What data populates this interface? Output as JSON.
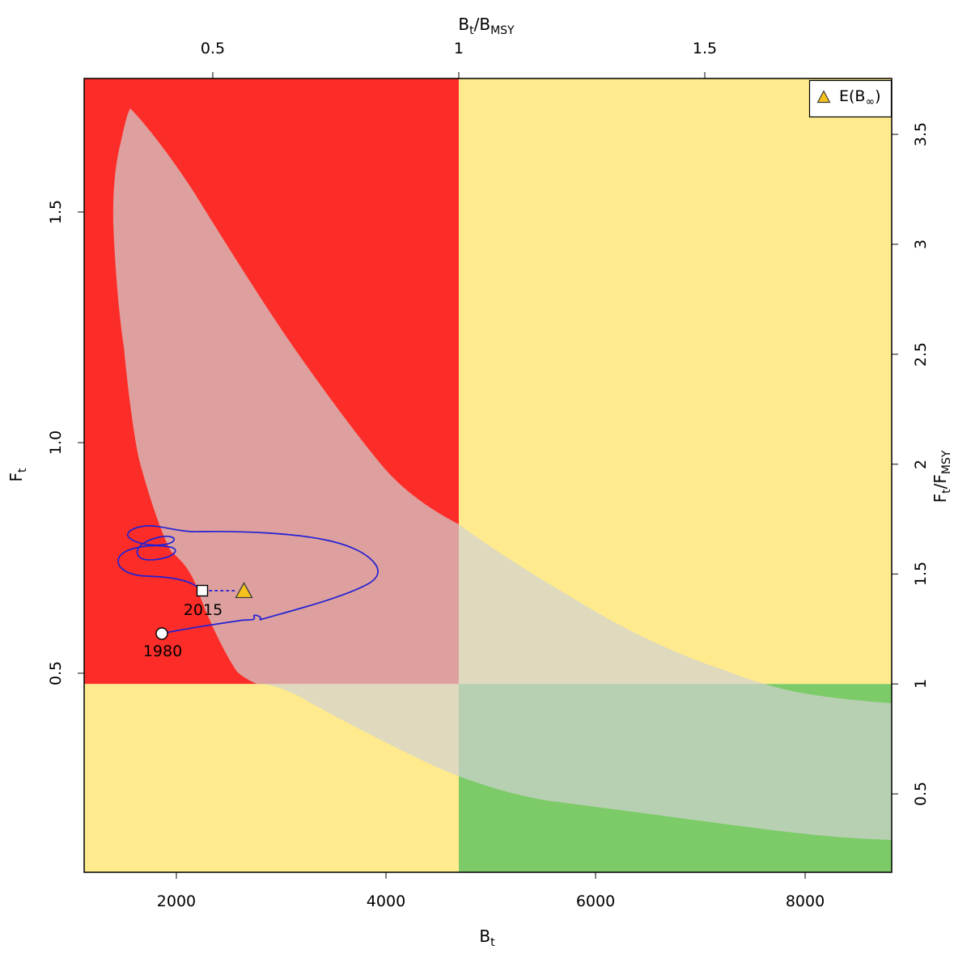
{
  "chart_data": {
    "type": "line",
    "subtype": "kobe-phase-plot",
    "title": "",
    "axes": {
      "bottom": {
        "title": {
          "p1": "B",
          "s1": "t"
        },
        "range": [
          1120,
          8826
        ],
        "ticks": [
          {
            "v": 2000,
            "label": "2000"
          },
          {
            "v": 4000,
            "label": "4000"
          },
          {
            "v": 6000,
            "label": "6000"
          },
          {
            "v": 8000,
            "label": "8000"
          }
        ]
      },
      "top": {
        "title": {
          "p1": "B",
          "s1": "t",
          "sep": "/",
          "p2": "B",
          "s2": "MSY"
        },
        "range": [
          0.2386,
          1.8799
        ],
        "ticks": [
          {
            "v": 0.5,
            "label": "0.5"
          },
          {
            "v": 1,
            "label": "1"
          },
          {
            "v": 1.5,
            "label": "1.5"
          }
        ]
      },
      "left": {
        "title": {
          "p1": "F",
          "s1": "t"
        },
        "range": [
          0.0684,
          1.7895
        ],
        "ticks": [
          {
            "v": 0.5,
            "label": "0.5"
          },
          {
            "v": 1.0,
            "label": "1.0"
          },
          {
            "v": 1.5,
            "label": "1.5"
          }
        ]
      },
      "right": {
        "title": {
          "p1": "F",
          "s1": "t",
          "sep": "/",
          "p2": "F",
          "s2": "MSY"
        },
        "range": [
          0.1435,
          3.7542
        ],
        "ticks": [
          {
            "v": 0.5,
            "label": "0.5"
          },
          {
            "v": 1,
            "label": "1"
          },
          {
            "v": 1.5,
            "label": "1.5"
          },
          {
            "v": 2,
            "label": "2"
          },
          {
            "v": 2.5,
            "label": "2.5"
          },
          {
            "v": 3,
            "label": "3"
          },
          {
            "v": 3.5,
            "label": "3.5"
          }
        ]
      }
    },
    "reference_points": {
      "b_msy": 4695,
      "f_msy": 0.477
    },
    "legend": {
      "pre": "E(B",
      "sub": "∞",
      "post": ")",
      "position": "top-right",
      "marker": "triangle"
    },
    "annotations": {
      "start_year": "1980",
      "end_year": "2015"
    },
    "markers": {
      "start": {
        "year": "1980",
        "b": 1861,
        "f": 0.586,
        "shape": "circle"
      },
      "end": {
        "year": "2015",
        "b": 2247,
        "f": 0.679,
        "shape": "square"
      },
      "e_b_infinity": {
        "b": 2641,
        "f": 0.679,
        "shape": "triangle"
      }
    },
    "trajectory_summary": {
      "b_range": [
        1430,
        3975
      ],
      "f_range": [
        0.59,
        0.81
      ],
      "description": "blue trajectory loops inside red (overfished/overfishing) quadrant from 1980 to 2015"
    },
    "colors": {
      "red_quadrant": "#fc2d28",
      "yellow_quadrant": "#ffeb8d",
      "green_quadrant": "#7ccb68",
      "uncertainty_cloud": "rgba(210,210,210,0.70)",
      "trajectory": "#2121d3",
      "marker_fill": "#ffffff",
      "marker_stroke": "#000000",
      "triangle_fill": "#f5c21d",
      "triangle_stroke": "#3c3c3c",
      "border": "#000000",
      "tick": "#404040",
      "legend_box_fill": "#ffffff"
    },
    "layout_hints": {
      "grid": false,
      "legend_position": "top-right"
    }
  }
}
